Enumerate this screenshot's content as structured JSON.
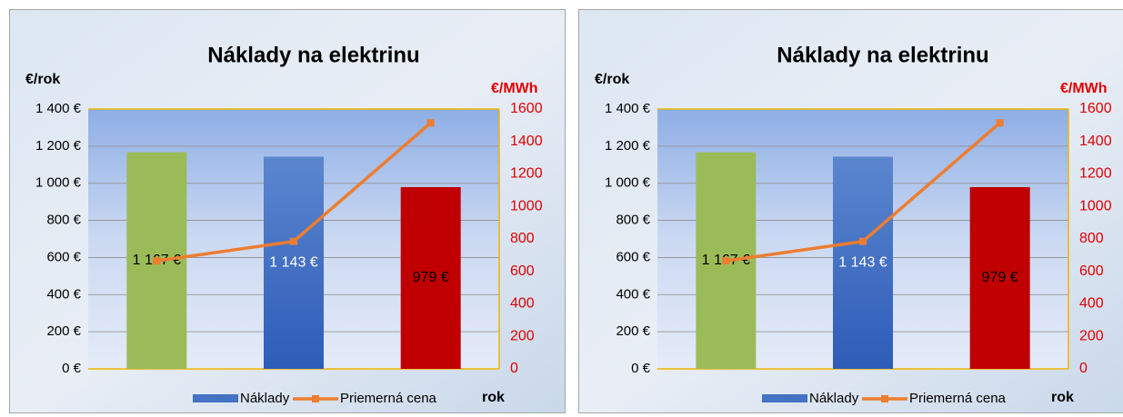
{
  "chart_data": [
    {
      "type": "bar-line",
      "title": "Náklady na elektrinu",
      "y_label": "€/rok",
      "y2_label": "€/MWh",
      "x_label": "rok",
      "categories": [
        null,
        null,
        null
      ],
      "series": [
        {
          "name": "Náklady",
          "color": "#4472c4",
          "colors": [
            "#9bbb59",
            "#4472c4",
            "#c00000"
          ],
          "values": [
            1167,
            1143,
            979
          ],
          "value_labels": [
            "1 167 €",
            "1 143 €",
            "979 €"
          ]
        },
        {
          "name": "Priemerná cena",
          "color": "#ed7d31",
          "axis": "y2",
          "values": [
            665,
            785,
            1515
          ]
        }
      ],
      "ylim": [
        0,
        1400
      ],
      "yticks": [
        {
          "value": 0,
          "label": "0 €"
        },
        {
          "value": 200,
          "label": "200 €"
        },
        {
          "value": 400,
          "label": "400 €"
        },
        {
          "value": 600,
          "label": "600 €"
        },
        {
          "value": 800,
          "label": "800 €"
        },
        {
          "value": 1000,
          "label": "1 000 €"
        },
        {
          "value": 1200,
          "label": "1 200 €"
        },
        {
          "value": 1400,
          "label": "1 400 €"
        }
      ],
      "y2lim": [
        0,
        1600
      ],
      "y2ticks": [
        0,
        200,
        400,
        600,
        800,
        1000,
        1200,
        1400,
        1600
      ],
      "grid": true,
      "legend": "bottom"
    },
    {
      "type": "bar-line",
      "title": "Náklady na elektrinu",
      "y_label": "€/rok",
      "y2_label": "€/MWh",
      "x_label": "rok",
      "categories": [
        null,
        null,
        null
      ],
      "series": [
        {
          "name": "Náklady",
          "color": "#4472c4",
          "colors": [
            "#9bbb59",
            "#4472c4",
            "#c00000"
          ],
          "values": [
            1167,
            1143,
            979
          ],
          "value_labels": [
            "1 167 €",
            "1 143 €",
            "979 €"
          ]
        },
        {
          "name": "Priemerná cena",
          "color": "#ed7d31",
          "axis": "y2",
          "values": [
            665,
            785,
            1515
          ]
        }
      ],
      "ylim": [
        0,
        1400
      ],
      "yticks": [
        {
          "value": 0,
          "label": "0 €"
        },
        {
          "value": 200,
          "label": "200 €"
        },
        {
          "value": 400,
          "label": "400 €"
        },
        {
          "value": 600,
          "label": "600 €"
        },
        {
          "value": 800,
          "label": "800 €"
        },
        {
          "value": 1000,
          "label": "1 000 €"
        },
        {
          "value": 1200,
          "label": "1 200 €"
        },
        {
          "value": 1400,
          "label": "1 400 €"
        }
      ],
      "y2lim": [
        0,
        1600
      ],
      "y2ticks": [
        0,
        200,
        400,
        600,
        800,
        1000,
        1200,
        1400,
        1600
      ],
      "grid": true,
      "legend": "bottom"
    }
  ]
}
